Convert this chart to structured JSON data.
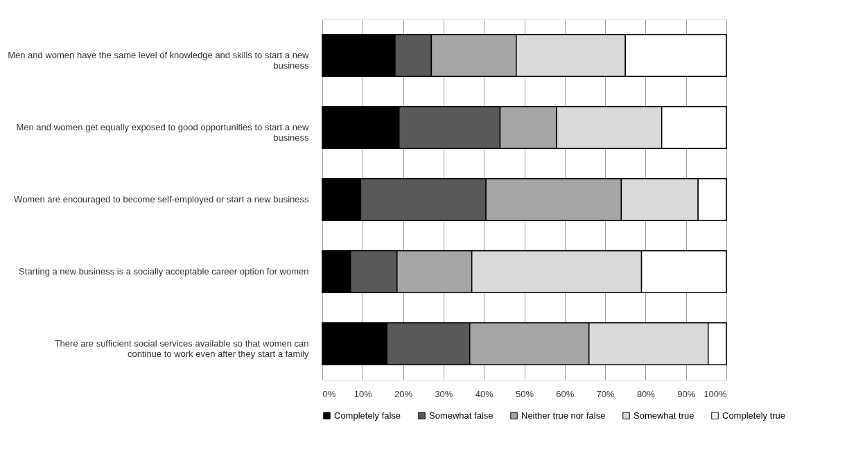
{
  "chart_data": {
    "type": "bar",
    "orientation": "horizontal",
    "stacked": true,
    "categories": [
      "Men and women have the same level of knowledge and skills to start a new business",
      "Men and women get equally exposed to good opportunities to start a new business",
      "Women are encouraged to become self-employed or start a new business",
      "Starting a new business is a socially acceptable career option for women",
      "There are sufficient social services available so that women can continue to work even after they start a family"
    ],
    "series": [
      {
        "name": "Completely false",
        "color": "#000000",
        "values": [
          18,
          19,
          9.5,
          7,
          16
        ]
      },
      {
        "name": "Somewhat false",
        "color": "#595959",
        "values": [
          9,
          25,
          31,
          11.5,
          20.5
        ]
      },
      {
        "name": "Neither true nor false",
        "color": "#a6a6a6",
        "values": [
          21,
          14,
          33.5,
          18.5,
          29.5
        ]
      },
      {
        "name": "Somewhat true",
        "color": "#d9d9d9",
        "values": [
          27,
          26,
          19,
          42,
          29.5
        ]
      },
      {
        "name": "Completely true",
        "color": "#ffffff",
        "values": [
          25,
          16,
          7,
          21,
          4.5
        ]
      }
    ],
    "xlim": [
      0,
      100
    ],
    "xticks": [
      {
        "value": 0,
        "label": "0%"
      },
      {
        "value": 10,
        "label": "10%"
      },
      {
        "value": 20,
        "label": "20%"
      },
      {
        "value": 30,
        "label": "30%"
      },
      {
        "value": 40,
        "label": "40%"
      },
      {
        "value": 50,
        "label": "50%"
      },
      {
        "value": 60,
        "label": "60%"
      },
      {
        "value": 70,
        "label": "70%"
      },
      {
        "value": 80,
        "label": "80%"
      },
      {
        "value": 90,
        "label": "90%"
      },
      {
        "value": 100,
        "label": "100%"
      }
    ],
    "grid": "x",
    "legend": "bottom"
  }
}
